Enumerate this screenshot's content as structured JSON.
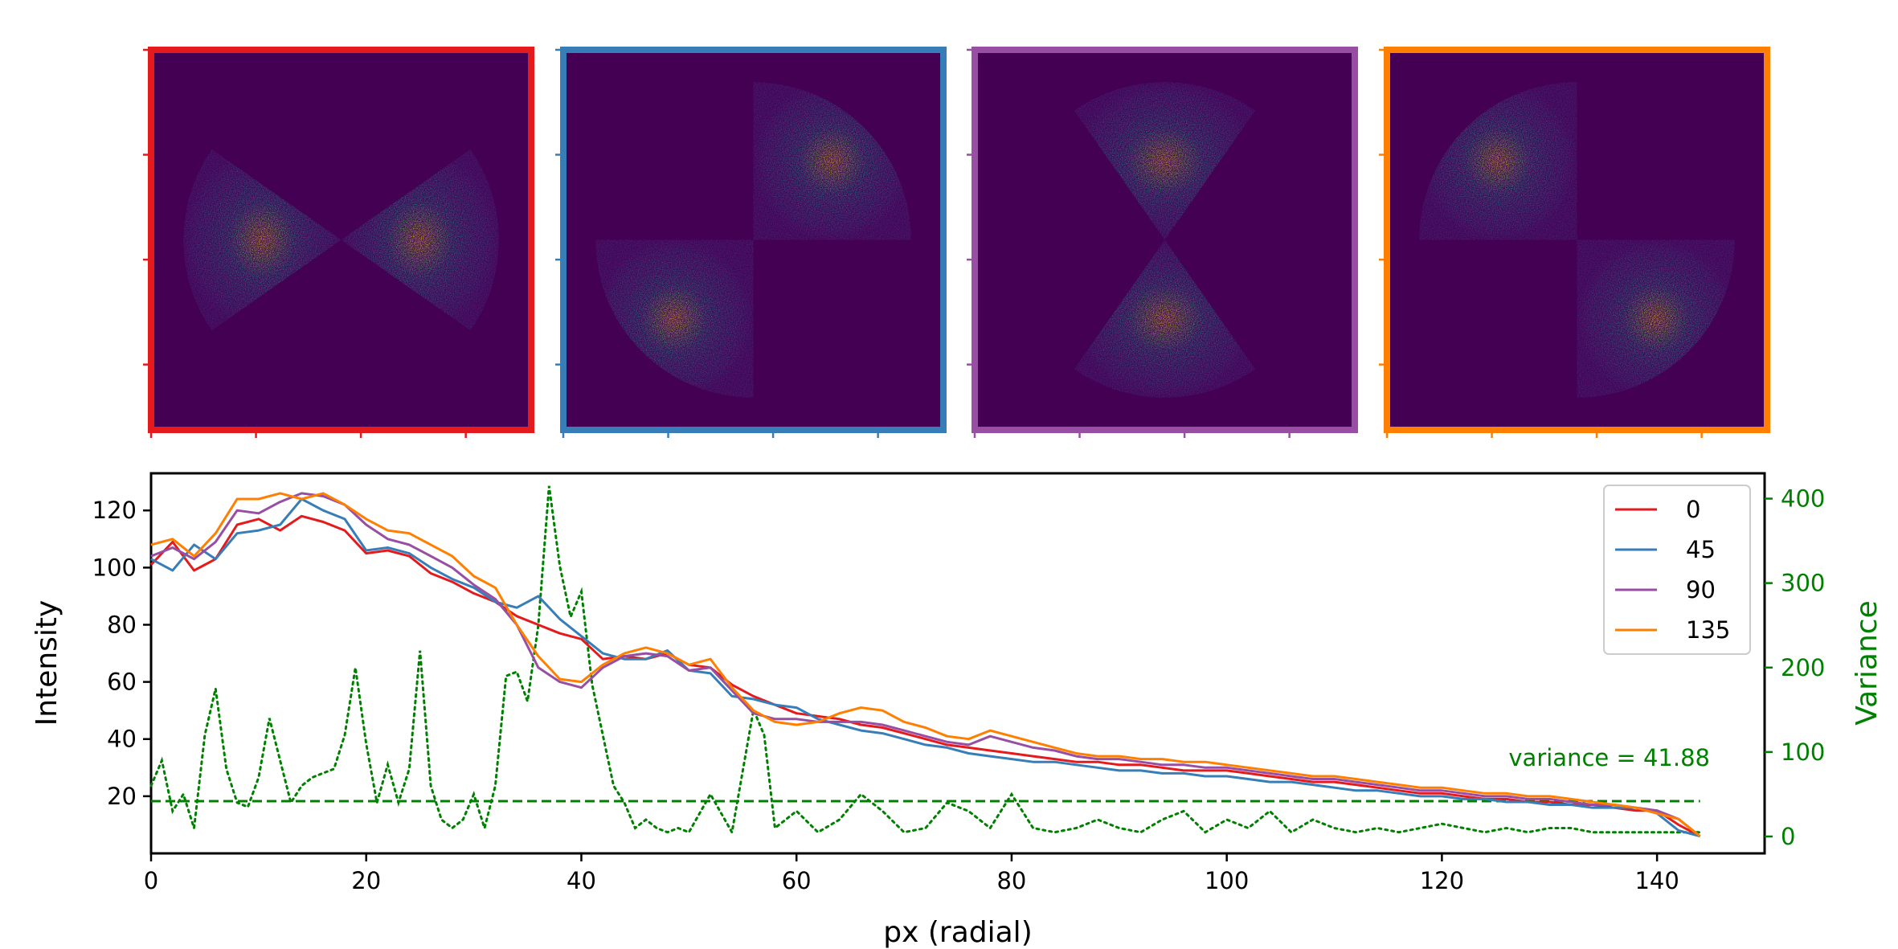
{
  "chart_data": [
    {
      "type": "heatmap",
      "description_role": "sector masks of 2D diffraction pattern",
      "panels": [
        {
          "name": "0",
          "border_color": "#e41a1c",
          "sectors_deg": [
            [
              -35,
              35
            ],
            [
              145,
              215
            ]
          ]
        },
        {
          "name": "45",
          "border_color": "#377eb8",
          "sectors_deg": [
            [
              0,
              90
            ],
            [
              180,
              270
            ]
          ]
        },
        {
          "name": "90",
          "border_color": "#984ea3",
          "sectors_deg": [
            [
              55,
              125
            ],
            [
              235,
              305
            ]
          ]
        },
        {
          "name": "135",
          "border_color": "#ff7f00",
          "sectors_deg": [
            [
              90,
              180
            ],
            [
              270,
              360
            ]
          ]
        }
      ],
      "colormap": [
        "#440154",
        "#3b528b",
        "#21918c",
        "#5ec962",
        "#fde725"
      ]
    },
    {
      "type": "line",
      "xlabel": "px (radial)",
      "ylabel": "Intensity",
      "y2label": "Variance",
      "xlim": [
        0,
        150
      ],
      "ylim": [
        0,
        133
      ],
      "y2lim": [
        -20,
        430
      ],
      "xticks": [
        0,
        20,
        40,
        60,
        80,
        100,
        120,
        140
      ],
      "yticks": [
        20,
        40,
        60,
        80,
        100,
        120
      ],
      "y2ticks": [
        0,
        100,
        200,
        300,
        400
      ],
      "legend_position": "top-right",
      "annotation": "variance = 41.88",
      "mean_variance": 41.88,
      "colors": {
        "0": "#e41a1c",
        "45": "#377eb8",
        "90": "#984ea3",
        "135": "#ff7f00",
        "variance": "#008000"
      },
      "x": [
        0,
        2,
        4,
        6,
        8,
        10,
        12,
        14,
        16,
        18,
        20,
        22,
        24,
        26,
        28,
        30,
        32,
        34,
        36,
        38,
        40,
        42,
        44,
        46,
        48,
        50,
        52,
        54,
        56,
        58,
        60,
        62,
        64,
        66,
        68,
        70,
        72,
        74,
        76,
        78,
        80,
        82,
        84,
        86,
        88,
        90,
        92,
        94,
        96,
        98,
        100,
        102,
        104,
        106,
        108,
        110,
        112,
        114,
        116,
        118,
        120,
        122,
        124,
        126,
        128,
        130,
        132,
        134,
        136,
        138,
        140,
        142,
        144
      ],
      "series": [
        {
          "name": "0",
          "values": [
            101,
            109,
            99,
            103,
            115,
            117,
            113,
            118,
            116,
            113,
            105,
            106,
            104,
            98,
            95,
            91,
            88,
            83,
            80,
            77,
            75,
            68,
            69,
            68,
            70,
            66,
            65,
            59,
            55,
            52,
            49,
            48,
            47,
            45,
            44,
            42,
            40,
            38,
            37,
            36,
            35,
            34,
            33,
            32,
            32,
            31,
            31,
            30,
            29,
            29,
            29,
            28,
            27,
            26,
            25,
            25,
            24,
            23,
            22,
            21,
            21,
            20,
            19,
            19,
            18,
            18,
            17,
            17,
            16,
            15,
            15,
            10,
            6
          ]
        },
        {
          "name": "45",
          "values": [
            103,
            99,
            108,
            103,
            112,
            113,
            115,
            124,
            120,
            117,
            106,
            107,
            105,
            100,
            96,
            93,
            88,
            86,
            90,
            82,
            76,
            70,
            68,
            68,
            71,
            64,
            63,
            55,
            54,
            52,
            51,
            47,
            45,
            43,
            42,
            40,
            38,
            37,
            35,
            34,
            33,
            32,
            32,
            31,
            30,
            29,
            29,
            28,
            28,
            27,
            27,
            26,
            25,
            25,
            24,
            23,
            22,
            22,
            21,
            20,
            20,
            19,
            19,
            18,
            18,
            17,
            17,
            16,
            16,
            16,
            14,
            8,
            6
          ]
        },
        {
          "name": "90",
          "values": [
            104,
            107,
            103,
            109,
            120,
            119,
            123,
            126,
            125,
            122,
            115,
            110,
            108,
            104,
            100,
            94,
            89,
            80,
            65,
            60,
            58,
            65,
            69,
            70,
            69,
            64,
            65,
            57,
            49,
            47,
            47,
            46,
            46,
            46,
            45,
            43,
            41,
            39,
            38,
            41,
            39,
            37,
            36,
            34,
            33,
            33,
            32,
            31,
            31,
            30,
            30,
            29,
            28,
            27,
            26,
            26,
            25,
            24,
            23,
            22,
            22,
            21,
            20,
            20,
            19,
            19,
            18,
            17,
            17,
            16,
            15,
            12,
            6
          ]
        },
        {
          "name": "135",
          "values": [
            108,
            110,
            104,
            112,
            124,
            124,
            126,
            124,
            126,
            122,
            117,
            113,
            112,
            108,
            104,
            97,
            93,
            80,
            69,
            61,
            60,
            66,
            70,
            72,
            70,
            66,
            68,
            58,
            50,
            46,
            45,
            46,
            49,
            51,
            50,
            46,
            44,
            41,
            40,
            43,
            41,
            39,
            37,
            35,
            34,
            34,
            33,
            33,
            32,
            32,
            31,
            30,
            29,
            28,
            27,
            27,
            26,
            25,
            24,
            23,
            23,
            22,
            21,
            21,
            20,
            20,
            19,
            18,
            17,
            16,
            14,
            12,
            6
          ]
        }
      ],
      "variance": {
        "name": "variance",
        "x": [
          0,
          1,
          2,
          3,
          4,
          5,
          6,
          7,
          8,
          9,
          10,
          11,
          12,
          13,
          14,
          15,
          16,
          17,
          18,
          19,
          20,
          21,
          22,
          23,
          24,
          25,
          26,
          27,
          28,
          29,
          30,
          31,
          32,
          33,
          34,
          35,
          36,
          37,
          38,
          39,
          40,
          41,
          42,
          43,
          44,
          45,
          46,
          47,
          48,
          49,
          50,
          52,
          54,
          56,
          57,
          58,
          60,
          62,
          64,
          66,
          68,
          70,
          72,
          74,
          76,
          78,
          80,
          82,
          84,
          86,
          88,
          90,
          92,
          94,
          96,
          98,
          100,
          102,
          104,
          106,
          108,
          110,
          112,
          114,
          116,
          118,
          120,
          122,
          124,
          126,
          128,
          130,
          132,
          134,
          136,
          138,
          140,
          142,
          144
        ],
        "values": [
          60,
          90,
          30,
          50,
          10,
          120,
          175,
          80,
          40,
          35,
          70,
          140,
          90,
          40,
          60,
          70,
          75,
          80,
          120,
          200,
          110,
          40,
          85,
          40,
          80,
          220,
          60,
          20,
          10,
          20,
          50,
          10,
          60,
          190,
          195,
          160,
          250,
          415,
          320,
          260,
          290,
          180,
          120,
          60,
          40,
          10,
          20,
          10,
          5,
          10,
          5,
          50,
          5,
          150,
          120,
          10,
          30,
          5,
          20,
          50,
          30,
          5,
          10,
          40,
          30,
          10,
          50,
          10,
          5,
          10,
          20,
          10,
          5,
          20,
          30,
          5,
          20,
          10,
          30,
          5,
          20,
          10,
          5,
          10,
          5,
          10,
          15,
          10,
          5,
          10,
          5,
          10,
          10,
          5,
          5,
          5,
          5,
          5,
          5
        ]
      }
    }
  ]
}
